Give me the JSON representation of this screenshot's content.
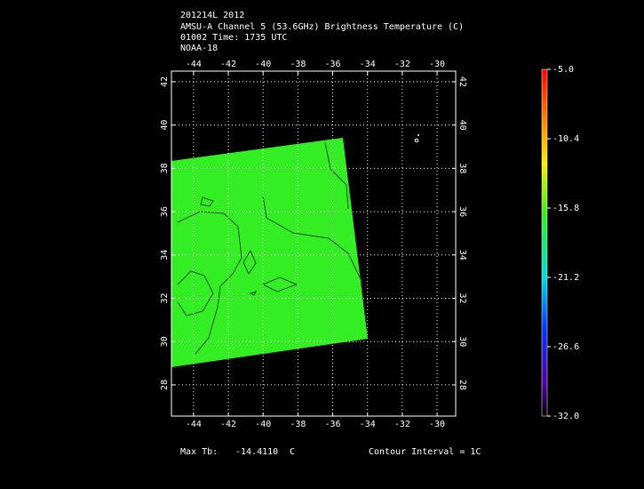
{
  "header": {
    "lines": [
      "201214L 2012",
      "AMSU-A Channel 5 (53.6GHz) Brightness Temperature (C)",
      "01002 Time: 1735 UTC",
      "NOAA-18"
    ]
  },
  "map": {
    "xlim": [
      -45.27,
      -28.93
    ],
    "ylim": [
      26.56,
      42.49
    ],
    "xticks": [
      -44,
      -42,
      -40,
      -38,
      -36,
      -34,
      -32,
      -30
    ],
    "yticks": [
      28,
      30,
      32,
      34,
      36,
      38,
      40,
      42
    ],
    "grid": true
  },
  "colorbar": {
    "clim": [
      -32.0,
      -5.0
    ],
    "ticks": [
      {
        "value": -5.0,
        "label": "-5.0"
      },
      {
        "value": -10.4,
        "label": "-10.4"
      },
      {
        "value": -15.8,
        "label": "-15.8"
      },
      {
        "value": -21.2,
        "label": "-21.2"
      },
      {
        "value": -26.6,
        "label": "-26.6"
      },
      {
        "value": -32.0,
        "label": "-32.0"
      }
    ]
  },
  "footer": {
    "max_label": "Max Tb:",
    "max_value": "-14.4110",
    "unit": "C",
    "contour": "Contour Interval = 1C"
  }
}
